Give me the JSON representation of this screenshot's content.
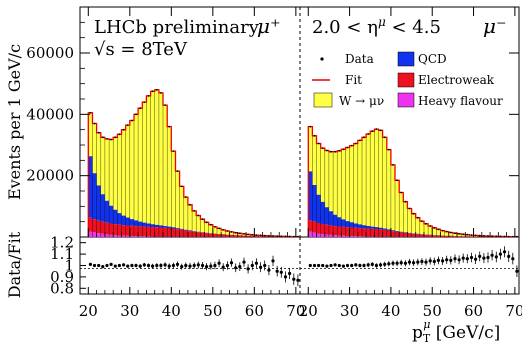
{
  "chart_data": {
    "type": "stacked-histogram",
    "title_left": "LHCb preliminary",
    "energy_label": "√s = 8TeV",
    "eta_range_label": "2.0 < η",
    "eta_sup": "μ",
    "eta_range_tail": " < 4.5",
    "panel_left_sign": "μ⁺",
    "panel_right_sign": "μ⁻",
    "ylabel_main": "Events per 1 GeV/c",
    "ylabel_ratio": "Data/Fit",
    "xlabel": "p",
    "xlabel_sub": "T",
    "xlabel_sup": "μ",
    "xlabel_unit": " [GeV/c]",
    "x_ticks": [
      20,
      30,
      40,
      50,
      60,
      70
    ],
    "y_ticks_main": [
      20000,
      40000,
      60000
    ],
    "y_ticks_ratio": [
      "1.2",
      "1.1",
      "1",
      "0.9",
      "0.8"
    ],
    "ylim_main": [
      0,
      75000
    ],
    "ylim_ratio": [
      0.75,
      1.25
    ],
    "xlim_each_panel": [
      18,
      71
    ],
    "legend": {
      "data": "Data",
      "fit": "Fit",
      "signal": "W → μν",
      "qcd": "QCD",
      "ew": "Electroweak",
      "hf": "Heavy flavour"
    },
    "colors": {
      "signal": "#ffff44",
      "qcd": "#1133ee",
      "ew": "#ee1122",
      "hf": "#ee33ee",
      "fit": "#ee0000"
    },
    "left_panel": {
      "bins_x": [
        20,
        21,
        22,
        23,
        24,
        25,
        26,
        27,
        28,
        29,
        30,
        31,
        32,
        33,
        34,
        35,
        36,
        37,
        38,
        39,
        40,
        41,
        42,
        43,
        44,
        45,
        46,
        47,
        48,
        49,
        50,
        51,
        52,
        53,
        54,
        55,
        56,
        57,
        58,
        59,
        60,
        61,
        62,
        63,
        64,
        65,
        66,
        67,
        68,
        69,
        70
      ],
      "hf": [
        1800,
        1500,
        1200,
        1000,
        850,
        700,
        600,
        500,
        420,
        350,
        300,
        250,
        210,
        180,
        150,
        130,
        110,
        95,
        80,
        70,
        60,
        50,
        45,
        40,
        35,
        30,
        26,
        22,
        19,
        16,
        14,
        12,
        11,
        10,
        9,
        8,
        7,
        6,
        5,
        5,
        4,
        4,
        3,
        3,
        3,
        2,
        2,
        2,
        2,
        1,
        1
      ],
      "ew": [
        4500,
        4300,
        4100,
        3950,
        3800,
        3700,
        3600,
        3500,
        3450,
        3400,
        3350,
        3300,
        3250,
        3200,
        3150,
        3100,
        3050,
        3000,
        2950,
        2850,
        2700,
        2500,
        2300,
        2100,
        1900,
        1700,
        1550,
        1400,
        1250,
        1100,
        1000,
        900,
        800,
        720,
        640,
        560,
        500,
        440,
        390,
        340,
        300,
        270,
        240,
        210,
        190,
        170,
        150,
        130,
        120,
        110,
        100
      ],
      "qcd": [
        20000,
        15000,
        11500,
        9000,
        7200,
        5800,
        4700,
        3800,
        3100,
        2600,
        2200,
        1850,
        1550,
        1300,
        1100,
        950,
        800,
        680,
        570,
        480,
        400,
        340,
        290,
        250,
        215,
        185,
        160,
        140,
        120,
        105,
        90,
        78,
        68,
        60,
        52,
        45,
        40,
        35,
        30,
        26,
        23,
        20,
        18,
        16,
        14,
        12,
        10,
        9,
        8,
        7,
        6
      ],
      "total": [
        40500,
        37000,
        34000,
        32500,
        32000,
        31800,
        32500,
        33500,
        35000,
        36500,
        38000,
        40000,
        42000,
        44000,
        46000,
        47500,
        48000,
        47000,
        43000,
        36000,
        28000,
        21500,
        16500,
        13000,
        10500,
        8500,
        7000,
        5800,
        4800,
        4000,
        3300,
        2800,
        2300,
        1950,
        1650,
        1400,
        1200,
        1000,
        850,
        720,
        600,
        510,
        430,
        370,
        310,
        260,
        220,
        190,
        160,
        140,
        120
      ],
      "ratio": [
        1.01,
        1.0,
        1.0,
        0.99,
        1.0,
        1.01,
        0.995,
        1.0,
        1.005,
        0.995,
        1.0,
        1.0,
        0.995,
        1.005,
        1.0,
        0.995,
        1.0,
        1.0,
        1.005,
        0.995,
        1.0,
        1.01,
        0.99,
        1.0,
        0.995,
        1.0,
        1.005,
        1.0,
        0.99,
        0.995,
        1.0,
        1.02,
        0.985,
        1.0,
        1.025,
        0.98,
        0.99,
        1.03,
        0.97,
        1.0,
        1.02,
        0.985,
        1.0,
        0.96,
        1.04,
        0.95,
        0.94,
        0.9,
        0.93,
        0.88,
        0.87
      ]
    },
    "right_panel": {
      "bins_x": [
        20,
        21,
        22,
        23,
        24,
        25,
        26,
        27,
        28,
        29,
        30,
        31,
        32,
        33,
        34,
        35,
        36,
        37,
        38,
        39,
        40,
        41,
        42,
        43,
        44,
        45,
        46,
        47,
        48,
        49,
        50,
        51,
        52,
        53,
        54,
        55,
        56,
        57,
        58,
        59,
        60,
        61,
        62,
        63,
        64,
        65,
        66,
        67,
        68,
        69,
        70
      ],
      "hf": [
        1700,
        1400,
        1150,
        950,
        800,
        680,
        570,
        480,
        400,
        340,
        290,
        240,
        200,
        170,
        145,
        125,
        105,
        90,
        76,
        66,
        56,
        48,
        42,
        37,
        32,
        28,
        24,
        21,
        18,
        15,
        13,
        11,
        10,
        9,
        8,
        7,
        6,
        5,
        5,
        4,
        4,
        3,
        3,
        3,
        2,
        2,
        2,
        2,
        1,
        1,
        1
      ],
      "ew": [
        3700,
        3550,
        3400,
        3300,
        3200,
        3100,
        3000,
        2950,
        2900,
        2850,
        2800,
        2750,
        2700,
        2650,
        2600,
        2550,
        2500,
        2400,
        2250,
        2050,
        1850,
        1650,
        1450,
        1300,
        1150,
        1000,
        900,
        800,
        700,
        620,
        550,
        480,
        420,
        370,
        330,
        290,
        255,
        225,
        200,
        175,
        155,
        135,
        120,
        105,
        95,
        85,
        75,
        65,
        58,
        52,
        46
      ],
      "qcd": [
        16000,
        12000,
        9200,
        7200,
        5700,
        4600,
        3700,
        3000,
        2450,
        2000,
        1700,
        1420,
        1200,
        1000,
        850,
        720,
        610,
        520,
        440,
        370,
        310,
        265,
        225,
        190,
        165,
        142,
        122,
        105,
        90,
        78,
        68,
        59,
        52,
        45,
        40,
        35,
        30,
        26,
        23,
        20,
        18,
        16,
        14,
        12,
        10,
        9,
        8,
        7,
        6,
        5,
        5
      ],
      "total": [
        36000,
        33000,
        30500,
        29000,
        28200,
        27800,
        27800,
        28100,
        28600,
        29200,
        29800,
        30500,
        31500,
        32500,
        33600,
        34500,
        35200,
        34800,
        32500,
        28500,
        23500,
        18500,
        14500,
        11500,
        9300,
        7600,
        6300,
        5200,
        4300,
        3600,
        3000,
        2500,
        2100,
        1760,
        1480,
        1250,
        1050,
        880,
        740,
        620,
        520,
        440,
        370,
        310,
        260,
        220,
        185,
        155,
        130,
        110,
        95
      ],
      "ratio": [
        1.0,
        1.0,
        1.0,
        1.0,
        0.995,
        1.0,
        1.005,
        1.0,
        0.995,
        1.0,
        1.0,
        1.005,
        1.0,
        1.0,
        1.005,
        1.01,
        1.0,
        1.005,
        1.01,
        1.015,
        1.02,
        1.02,
        1.025,
        1.02,
        1.03,
        1.025,
        1.03,
        1.035,
        1.03,
        1.04,
        1.035,
        1.045,
        1.04,
        1.05,
        1.045,
        1.06,
        1.05,
        1.065,
        1.06,
        1.07,
        1.055,
        1.08,
        1.065,
        1.07,
        1.09,
        1.075,
        1.1,
        1.12,
        1.08,
        1.06,
        0.95
      ]
    }
  }
}
